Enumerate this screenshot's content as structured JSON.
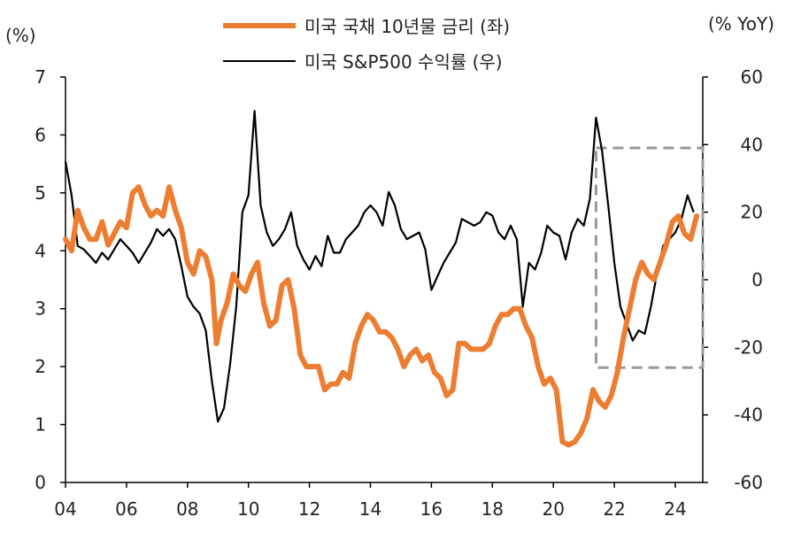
{
  "chart_data": {
    "type": "line",
    "left_unit": "(%)",
    "right_unit": "(% YoY)",
    "x_ticks": [
      "04",
      "06",
      "08",
      "10",
      "12",
      "14",
      "16",
      "18",
      "20",
      "22",
      "24"
    ],
    "left_ticks": [
      "0",
      "1",
      "2",
      "3",
      "4",
      "5",
      "6",
      "7"
    ],
    "right_ticks": [
      "-60",
      "-40",
      "-20",
      "0",
      "20",
      "40",
      "60"
    ],
    "xlim": [
      2004,
      2024.9
    ],
    "ylim_left": [
      0,
      7
    ],
    "ylim_right": [
      -60,
      60
    ],
    "highlight_box": {
      "x": [
        2021.4,
        2024.9
      ],
      "y_right": [
        -26,
        39
      ]
    },
    "series": [
      {
        "name": "미국 국채 10년물 금리 (좌)",
        "axis": "left",
        "color": "#ED7D31",
        "x": [
          2004.0,
          2004.2,
          2004.4,
          2004.6,
          2004.8,
          2005.0,
          2005.2,
          2005.4,
          2005.6,
          2005.8,
          2006.0,
          2006.2,
          2006.4,
          2006.6,
          2006.8,
          2007.0,
          2007.2,
          2007.4,
          2007.6,
          2007.8,
          2008.0,
          2008.2,
          2008.4,
          2008.6,
          2008.8,
          2008.95,
          2009.1,
          2009.3,
          2009.5,
          2009.7,
          2009.9,
          2010.1,
          2010.3,
          2010.5,
          2010.7,
          2010.9,
          2011.1,
          2011.3,
          2011.5,
          2011.7,
          2011.9,
          2012.1,
          2012.3,
          2012.5,
          2012.7,
          2012.9,
          2013.1,
          2013.3,
          2013.5,
          2013.7,
          2013.9,
          2014.1,
          2014.3,
          2014.5,
          2014.7,
          2014.9,
          2015.1,
          2015.3,
          2015.5,
          2015.7,
          2015.9,
          2016.1,
          2016.3,
          2016.5,
          2016.7,
          2016.9,
          2017.1,
          2017.3,
          2017.5,
          2017.7,
          2017.9,
          2018.1,
          2018.3,
          2018.5,
          2018.7,
          2018.9,
          2019.1,
          2019.3,
          2019.5,
          2019.7,
          2019.9,
          2020.1,
          2020.3,
          2020.5,
          2020.7,
          2020.9,
          2021.1,
          2021.3,
          2021.5,
          2021.7,
          2021.9,
          2022.1,
          2022.3,
          2022.5,
          2022.7,
          2022.9,
          2023.1,
          2023.3,
          2023.5,
          2023.7,
          2023.9,
          2024.1,
          2024.3,
          2024.5,
          2024.7
        ],
        "values": [
          4.2,
          4.0,
          4.7,
          4.4,
          4.2,
          4.2,
          4.5,
          4.1,
          4.3,
          4.5,
          4.4,
          5.0,
          5.1,
          4.8,
          4.6,
          4.7,
          4.6,
          5.1,
          4.7,
          4.4,
          3.8,
          3.6,
          4.0,
          3.9,
          3.5,
          2.4,
          2.8,
          3.1,
          3.6,
          3.4,
          3.3,
          3.6,
          3.8,
          3.1,
          2.7,
          2.8,
          3.4,
          3.5,
          3.0,
          2.2,
          2.0,
          2.0,
          2.0,
          1.6,
          1.7,
          1.7,
          1.9,
          1.8,
          2.4,
          2.7,
          2.9,
          2.8,
          2.6,
          2.6,
          2.5,
          2.3,
          2.0,
          2.2,
          2.3,
          2.1,
          2.2,
          1.9,
          1.8,
          1.5,
          1.6,
          2.4,
          2.4,
          2.3,
          2.3,
          2.3,
          2.4,
          2.7,
          2.9,
          2.9,
          3.0,
          3.0,
          2.7,
          2.5,
          2.0,
          1.7,
          1.8,
          1.6,
          0.7,
          0.65,
          0.7,
          0.85,
          1.1,
          1.6,
          1.4,
          1.3,
          1.5,
          1.9,
          2.5,
          3.0,
          3.5,
          3.8,
          3.6,
          3.5,
          3.8,
          4.1,
          4.5,
          4.6,
          4.3,
          4.2,
          4.6
        ]
      },
      {
        "name": "미국 S&P500 수익률 (우)",
        "axis": "right",
        "color": "#000000",
        "x": [
          2004.0,
          2004.2,
          2004.4,
          2004.6,
          2004.8,
          2005.0,
          2005.2,
          2005.4,
          2005.6,
          2005.8,
          2006.0,
          2006.2,
          2006.4,
          2006.6,
          2006.8,
          2007.0,
          2007.2,
          2007.4,
          2007.6,
          2007.8,
          2008.0,
          2008.2,
          2008.4,
          2008.6,
          2008.8,
          2009.0,
          2009.2,
          2009.4,
          2009.6,
          2009.8,
          2010.0,
          2010.2,
          2010.4,
          2010.6,
          2010.8,
          2011.0,
          2011.2,
          2011.4,
          2011.6,
          2011.8,
          2012.0,
          2012.2,
          2012.4,
          2012.6,
          2012.8,
          2013.0,
          2013.2,
          2013.4,
          2013.6,
          2013.8,
          2014.0,
          2014.2,
          2014.4,
          2014.6,
          2014.8,
          2015.0,
          2015.2,
          2015.4,
          2015.6,
          2015.8,
          2016.0,
          2016.2,
          2016.4,
          2016.6,
          2016.8,
          2017.0,
          2017.2,
          2017.4,
          2017.6,
          2017.8,
          2018.0,
          2018.2,
          2018.4,
          2018.6,
          2018.8,
          2019.0,
          2019.2,
          2019.4,
          2019.6,
          2019.8,
          2020.0,
          2020.2,
          2020.4,
          2020.6,
          2020.8,
          2021.0,
          2021.2,
          2021.4,
          2021.6,
          2021.8,
          2022.0,
          2022.2,
          2022.4,
          2022.6,
          2022.8,
          2023.0,
          2023.2,
          2023.4,
          2023.6,
          2023.8,
          2024.0,
          2024.2,
          2024.4,
          2024.6
        ],
        "values": [
          35,
          25,
          10,
          9,
          7,
          5,
          8,
          6,
          9,
          12,
          10,
          8,
          5,
          8,
          11,
          15,
          13,
          15,
          12,
          4,
          -5,
          -8,
          -10,
          -15,
          -30,
          -42,
          -38,
          -25,
          -8,
          20,
          25,
          50,
          22,
          14,
          10,
          12,
          15,
          20,
          10,
          6,
          3,
          7,
          4,
          13,
          8,
          8,
          12,
          14,
          16,
          20,
          22,
          20,
          16,
          26,
          22,
          15,
          12,
          13,
          14,
          9,
          -3,
          1,
          5,
          8,
          11,
          18,
          17,
          16,
          17,
          20,
          19,
          14,
          12,
          16,
          12,
          -8,
          5,
          3,
          8,
          16,
          14,
          13,
          6,
          14,
          18,
          16,
          24,
          48,
          38,
          22,
          5,
          -8,
          -13,
          -18,
          -15,
          -16,
          -8,
          2,
          10,
          12,
          14,
          18,
          25,
          20
        ]
      }
    ]
  }
}
